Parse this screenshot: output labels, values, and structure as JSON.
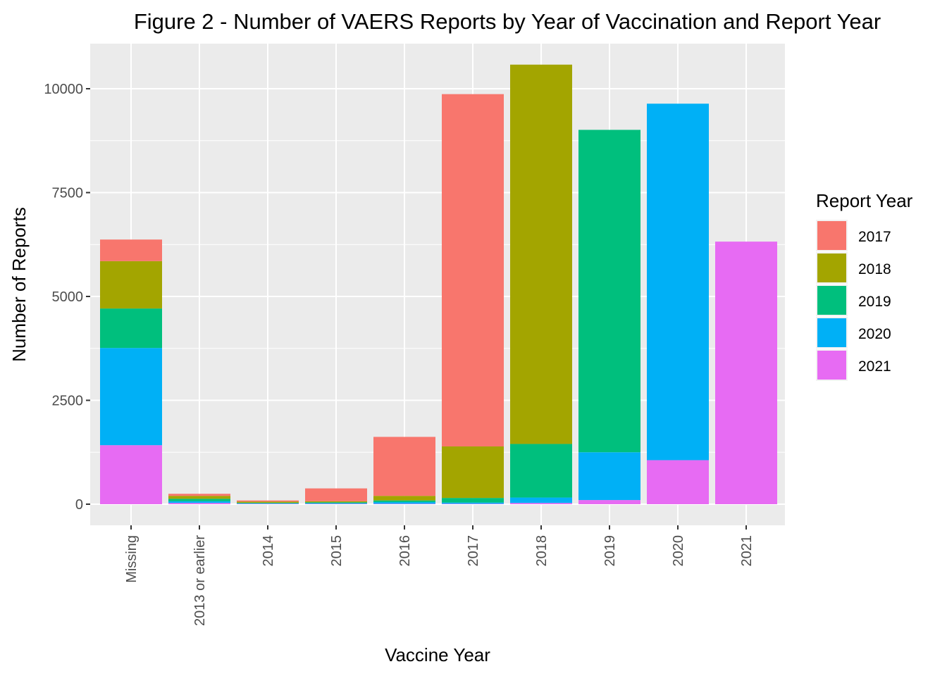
{
  "chart_data": {
    "type": "bar",
    "stacked": true,
    "title": "Figure 2 - Number of VAERS Reports by Year of Vaccination and Report Year",
    "xlabel": "Vaccine Year",
    "ylabel": "Number of Reports",
    "ylim": [
      0,
      10600
    ],
    "yticks": [
      0,
      2500,
      5000,
      7500,
      10000
    ],
    "ytick_labels": [
      "0",
      "2500",
      "5000",
      "7500",
      "10000"
    ],
    "grid": true,
    "legend": {
      "title": "Report Year",
      "position": "right"
    },
    "categories": [
      "Missing",
      "2013 or earlier",
      "2014",
      "2015",
      "2016",
      "2017",
      "2018",
      "2019",
      "2020",
      "2021"
    ],
    "series": [
      {
        "name": "2021",
        "color": "#E76BF3",
        "values": [
          1420,
          30,
          10,
          10,
          10,
          10,
          30,
          100,
          1060,
          6320
        ]
      },
      {
        "name": "2020",
        "color": "#00B0F6",
        "values": [
          2340,
          40,
          10,
          15,
          40,
          30,
          130,
          1150,
          8580,
          0
        ]
      },
      {
        "name": "2019",
        "color": "#00BF7D",
        "values": [
          950,
          60,
          15,
          20,
          40,
          110,
          1290,
          7760,
          0,
          0
        ]
      },
      {
        "name": "2018",
        "color": "#A3A500",
        "values": [
          1140,
          70,
          25,
          25,
          110,
          1240,
          9130,
          0,
          0,
          0
        ]
      },
      {
        "name": "2017",
        "color": "#F8766D",
        "values": [
          520,
          50,
          30,
          310,
          1420,
          8480,
          0,
          0,
          0,
          0
        ]
      }
    ]
  }
}
